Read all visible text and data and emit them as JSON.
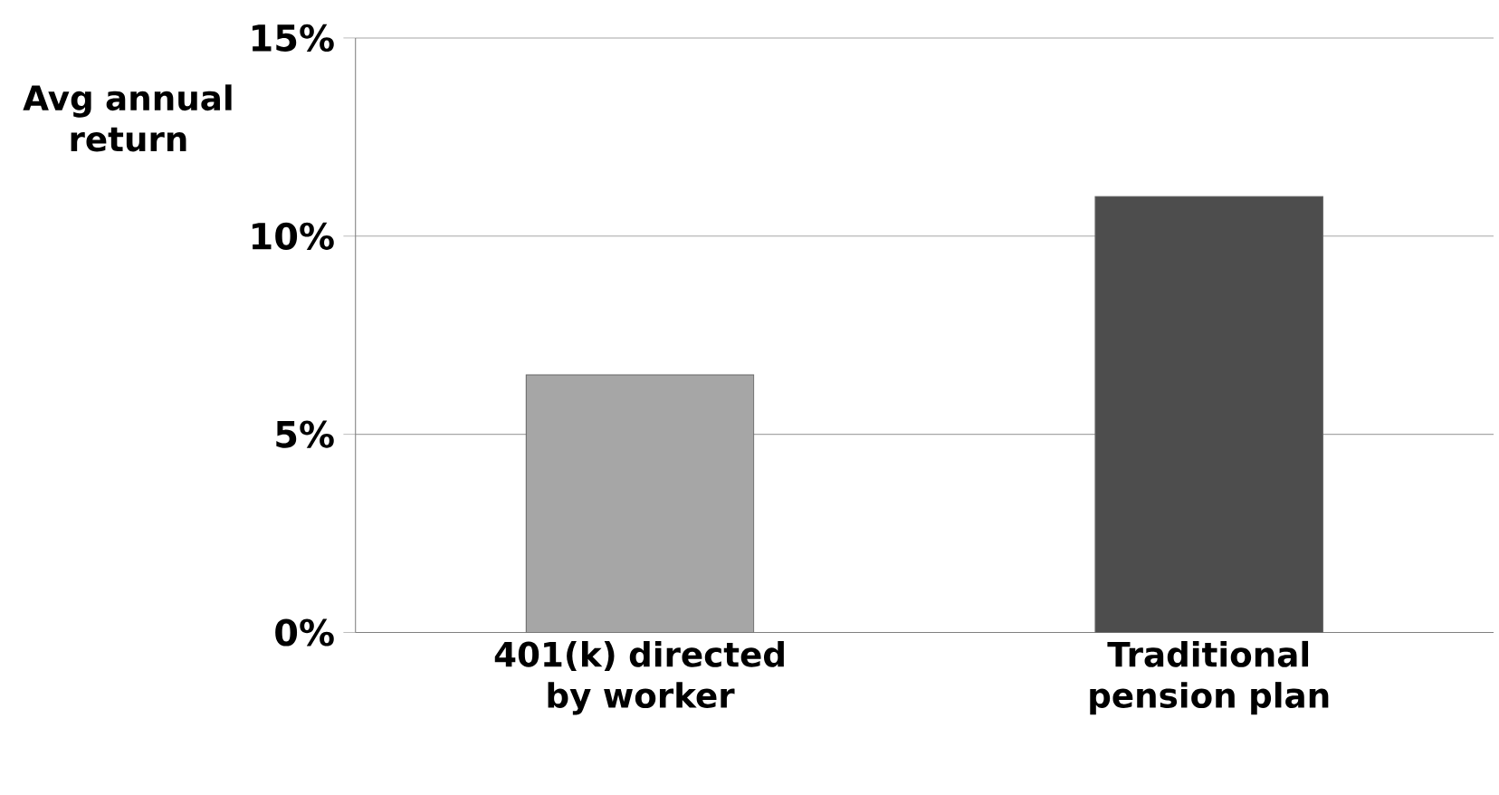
{
  "chart_data": {
    "type": "bar",
    "ylabel": "Avg annual return",
    "categories": [
      "401(k) directed by worker",
      "Traditional pension plan"
    ],
    "values": [
      6.5,
      11
    ],
    "colors": [
      "#a6a6a6",
      "#4d4d4d"
    ],
    "ylim": [
      0,
      15
    ],
    "yticks": [
      {
        "value": 0,
        "label": "0%"
      },
      {
        "value": 5,
        "label": "5%"
      },
      {
        "value": 10,
        "label": "10%"
      },
      {
        "value": 15,
        "label": "15%"
      }
    ],
    "grid": "y"
  }
}
